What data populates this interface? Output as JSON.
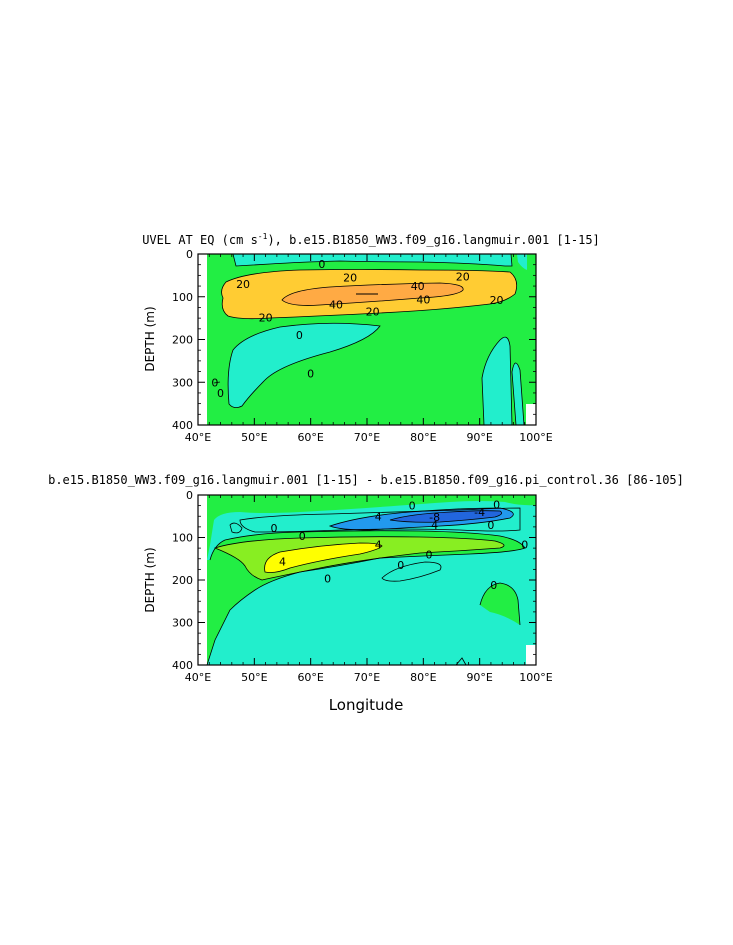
{
  "colors": {
    "green": "#22ee44",
    "cyan": "#22eecc",
    "lightgreen": "#88ee22",
    "yellow": "#ffff00",
    "lightorange": "#ffcc33",
    "orange": "#ffaa44",
    "blue": "#2299ee",
    "darkblue": "#2266dd",
    "white": "#ffffff"
  },
  "chart_data": [
    {
      "type": "contour",
      "title": "UVEL AT EQ (cm s",
      "title_sup": "-1",
      "title_rest": "), b.e15.B1850_WW3.f09_g16.langmuir.001 [1-15]",
      "ylabel": "DEPTH (m)",
      "xlabel": "",
      "x_ticks": [
        "40°E",
        "50°E",
        "60°E",
        "70°E",
        "80°E",
        "90°E",
        "100°E"
      ],
      "y_ticks": [
        "0",
        "100",
        "200",
        "300",
        "400"
      ],
      "xlim": [
        40,
        100
      ],
      "ylim": [
        0,
        400
      ],
      "contour_levels": [
        "0",
        "20",
        "40"
      ],
      "contour_labels": [
        {
          "text": "0",
          "lon": 62,
          "depth": 23
        },
        {
          "text": "20",
          "lon": 48,
          "depth": 70
        },
        {
          "text": "20",
          "lon": 67,
          "depth": 55
        },
        {
          "text": "20",
          "lon": 87,
          "depth": 53
        },
        {
          "text": "40",
          "lon": 79,
          "depth": 75
        },
        {
          "text": "40",
          "lon": 64.5,
          "depth": 118
        },
        {
          "text": "40",
          "lon": 80,
          "depth": 107
        },
        {
          "text": "20",
          "lon": 93,
          "depth": 108
        },
        {
          "text": "20",
          "lon": 52,
          "depth": 149
        },
        {
          "text": "20",
          "lon": 71,
          "depth": 135
        },
        {
          "text": "0",
          "lon": 58,
          "depth": 190
        },
        {
          "text": "0",
          "lon": 60,
          "depth": 280
        },
        {
          "text": "0",
          "lon": 44,
          "depth": 325
        },
        {
          "text": "0",
          "lon": 43,
          "depth": 301
        }
      ]
    },
    {
      "type": "contour",
      "title": "b.e15.B1850_WW3.f09_g16.langmuir.001 [1-15] - b.e15.B1850.f09_g16.pi_control.36 [86-105]",
      "ylabel": "DEPTH (m)",
      "xlabel": "Longitude",
      "x_ticks": [
        "40°E",
        "50°E",
        "60°E",
        "70°E",
        "80°E",
        "90°E",
        "100°E"
      ],
      "y_ticks": [
        "0",
        "100",
        "200",
        "300",
        "400"
      ],
      "xlim": [
        40,
        100
      ],
      "ylim": [
        0,
        400
      ],
      "contour_levels": [
        "-8",
        "-4",
        "0",
        "4"
      ],
      "contour_labels": [
        {
          "text": "4",
          "lon": 72,
          "depth": 50
        },
        {
          "text": "0",
          "lon": 78,
          "depth": 25
        },
        {
          "text": "0",
          "lon": 93,
          "depth": 22
        },
        {
          "text": "-8",
          "lon": 82,
          "depth": 52
        },
        {
          "text": "-4",
          "lon": 90,
          "depth": 40
        },
        {
          "text": "4",
          "lon": 82,
          "depth": 70
        },
        {
          "text": "0",
          "lon": 53.5,
          "depth": 78
        },
        {
          "text": "0",
          "lon": 58.5,
          "depth": 97
        },
        {
          "text": "4",
          "lon": 72,
          "depth": 117
        },
        {
          "text": "0",
          "lon": 76,
          "depth": 165
        },
        {
          "text": "0",
          "lon": 92,
          "depth": 70
        },
        {
          "text": "0",
          "lon": 98,
          "depth": 117
        },
        {
          "text": "4",
          "lon": 55,
          "depth": 157
        },
        {
          "text": "0",
          "lon": 63,
          "depth": 197
        },
        {
          "text": "0",
          "lon": 92.5,
          "depth": 212
        },
        {
          "text": "0",
          "lon": 81,
          "depth": 140
        }
      ]
    }
  ]
}
